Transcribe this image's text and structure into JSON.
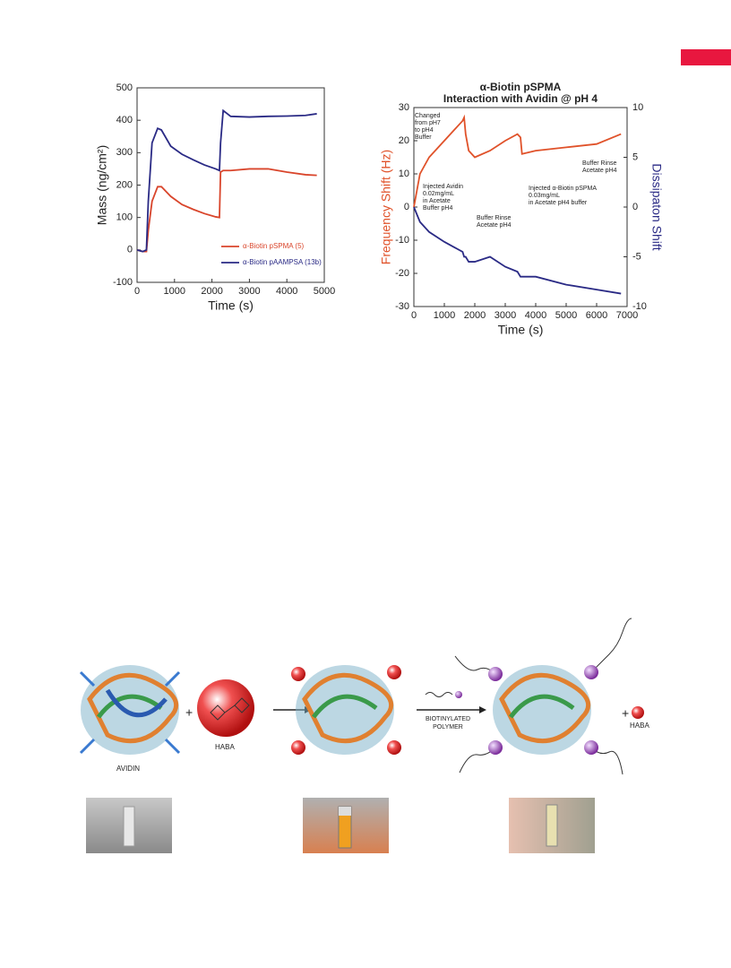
{
  "chart_data": [
    {
      "type": "line",
      "xlabel": "Time (s)",
      "ylabel": "Mass (ng/cm²)",
      "x": [
        0,
        150,
        250,
        300,
        400,
        550,
        650,
        900,
        1200,
        1500,
        1800,
        2100,
        2200,
        2230,
        2300,
        2500,
        3000,
        3500,
        4000,
        4500,
        4800
      ],
      "series": [
        {
          "name": "α-Biotin pSPMA (5)",
          "color": "#d9452b",
          "values": [
            0,
            -5,
            -5,
            60,
            150,
            195,
            195,
            165,
            140,
            125,
            112,
            102,
            100,
            240,
            245,
            245,
            250,
            250,
            240,
            232,
            230
          ]
        },
        {
          "name": "α-Biotin pAAMPSA (13b)",
          "color": "#2a2a85",
          "values": [
            0,
            -5,
            0,
            150,
            330,
            375,
            370,
            320,
            295,
            278,
            262,
            250,
            245,
            330,
            430,
            412,
            410,
            412,
            413,
            415,
            420
          ]
        }
      ],
      "xlim": [
        0,
        5000
      ],
      "xticks": [
        0,
        1000,
        2000,
        3000,
        4000,
        5000
      ],
      "ylim": [
        -100,
        500
      ],
      "yticks": [
        -100,
        0,
        100,
        200,
        300,
        400,
        500
      ],
      "legend": "lower right"
    },
    {
      "type": "line",
      "title": "α-Biotin pSPMA",
      "subtitle": "Interaction with Avidin @ pH 4",
      "xlabel": "Time (s)",
      "ylabel": "Frequency Shift (Hz)",
      "y2label": "Dissipaton Shift",
      "x": [
        0,
        200,
        500,
        1000,
        1300,
        1600,
        1650,
        1700,
        1800,
        2000,
        2500,
        3000,
        3400,
        3500,
        3550,
        4000,
        5000,
        6000,
        6800
      ],
      "series": [
        {
          "color": "#e0522a",
          "values": [
            0,
            10,
            15,
            20,
            23,
            26,
            27,
            22,
            17,
            15,
            17,
            20,
            22,
            21,
            16,
            17,
            18,
            19,
            22
          ]
        },
        {
          "color": "#2a2a85",
          "axis": "y2",
          "values": [
            0,
            -1.5,
            -2.5,
            -3.5,
            -4,
            -4.5,
            -5,
            -5,
            -5.5,
            -5.5,
            -5,
            -6,
            -6.5,
            -7,
            -7,
            -7,
            -7.8,
            -8.3,
            -8.7
          ]
        }
      ],
      "xlim": [
        0,
        7000
      ],
      "xticks": [
        0,
        1000,
        2000,
        3000,
        4000,
        5000,
        6000,
        7000
      ],
      "ylim": [
        -30,
        30
      ],
      "yticks": [
        -30,
        -20,
        -10,
        0,
        10,
        20,
        30
      ],
      "y2lim": [
        -10,
        10
      ],
      "y2ticks": [
        -10,
        -5,
        0,
        5,
        10
      ],
      "annotations": [
        [
          "Changed",
          "from pH7",
          "to pH4",
          "Buffer"
        ],
        [
          "Injected Avidin",
          "0.02mg/mL",
          "in Acetate",
          "Buffer pH4"
        ],
        [
          "Buffer Rinse",
          "Acetate pH4"
        ],
        [
          "Injected  α-Biotin pSPMA",
          "0.03mg/mL",
          "in Acetate pH4 buffer"
        ],
        [
          "Buffer Rinse",
          "Acetate pH4"
        ]
      ]
    }
  ],
  "scheme": {
    "avidin": "AVIDIN",
    "plus1": "+",
    "haba": "HABA",
    "arrow_label": [
      "BIOTINYLATED",
      "POLYMER"
    ],
    "plus2": "+",
    "haba2": "HABA"
  }
}
